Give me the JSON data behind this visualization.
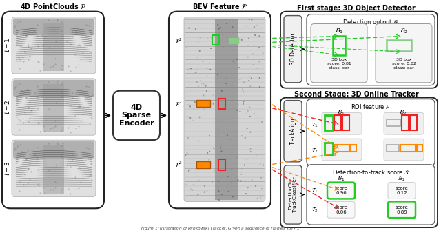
{
  "title": "4D PointClouds $\\mathcal{P}$",
  "bev_title": "BEV Feature $\\mathcal{F}$",
  "first_stage_title": "First stage: 3D Object Detector",
  "second_stage_title": "Second Stage: 3D Online Tracker",
  "detection_output_title": "Detection output $\\mathcal{B}$",
  "roi_feature_title": "ROI feature $\\mathbb{F}$",
  "det_to_track_title": "Detection-to-track score $\\mathcal{S}$",
  "encoder_label": "4D\nSparse\nEncoder",
  "track_align_label": "TrackAlign",
  "det_to_track_label": "DetectionTo\nTrackClassifier",
  "det_b1_text": "3D box\nscore: 0.81\nclass: car",
  "det_b2_text": "3D box\nscore: 0.62\nclass: car",
  "score_t1_b1": "score\n0.96",
  "score_t1_b2": "score\n0.12",
  "score_t2_b1": "score\n0.06",
  "score_t2_b2": "score\n0.89",
  "caption": "Figure 1: Illustration of Minkowski Tracker...",
  "green": "#22cc22",
  "orange": "#ff8800",
  "red": "#ee2222",
  "light_green": "#88cc88",
  "bg_color": "#ffffff",
  "pc_bg": "#e0e0e0",
  "bev_bg": "#cccccc"
}
